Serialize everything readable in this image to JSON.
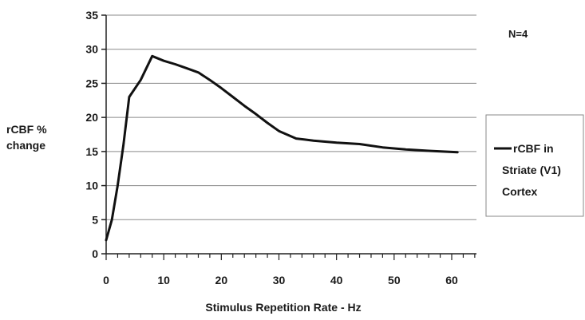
{
  "chart_data": {
    "type": "line",
    "title": "",
    "xlabel": "Stimulus Repetition Rate - Hz",
    "ylabel_lines": [
      "rCBF %",
      "change"
    ],
    "xlim": [
      0,
      60
    ],
    "ylim": [
      0,
      35
    ],
    "x_ticks": [
      0,
      10,
      20,
      30,
      40,
      50,
      60
    ],
    "y_ticks": [
      0,
      5,
      10,
      15,
      20,
      25,
      30,
      35
    ],
    "grid": "horizontal",
    "legend_position": "right",
    "annotation": "N=4",
    "series": [
      {
        "name_lines": [
          "rCBF in",
          "Striate (V1)",
          "Cortex"
        ],
        "color": "#111111",
        "x": [
          0,
          1,
          2,
          3,
          4,
          6,
          8,
          10,
          12,
          14,
          16,
          18,
          20,
          22,
          24,
          26,
          28,
          30,
          33,
          36,
          40,
          44,
          48,
          52,
          56,
          61
        ],
        "y": [
          2,
          5,
          10,
          16,
          23,
          25.5,
          29,
          28.3,
          27.8,
          27.2,
          26.6,
          25.5,
          24.3,
          23,
          21.7,
          20.5,
          19.2,
          18,
          16.9,
          16.6,
          16.3,
          16.1,
          15.6,
          15.3,
          15.1,
          14.9
        ]
      }
    ]
  }
}
